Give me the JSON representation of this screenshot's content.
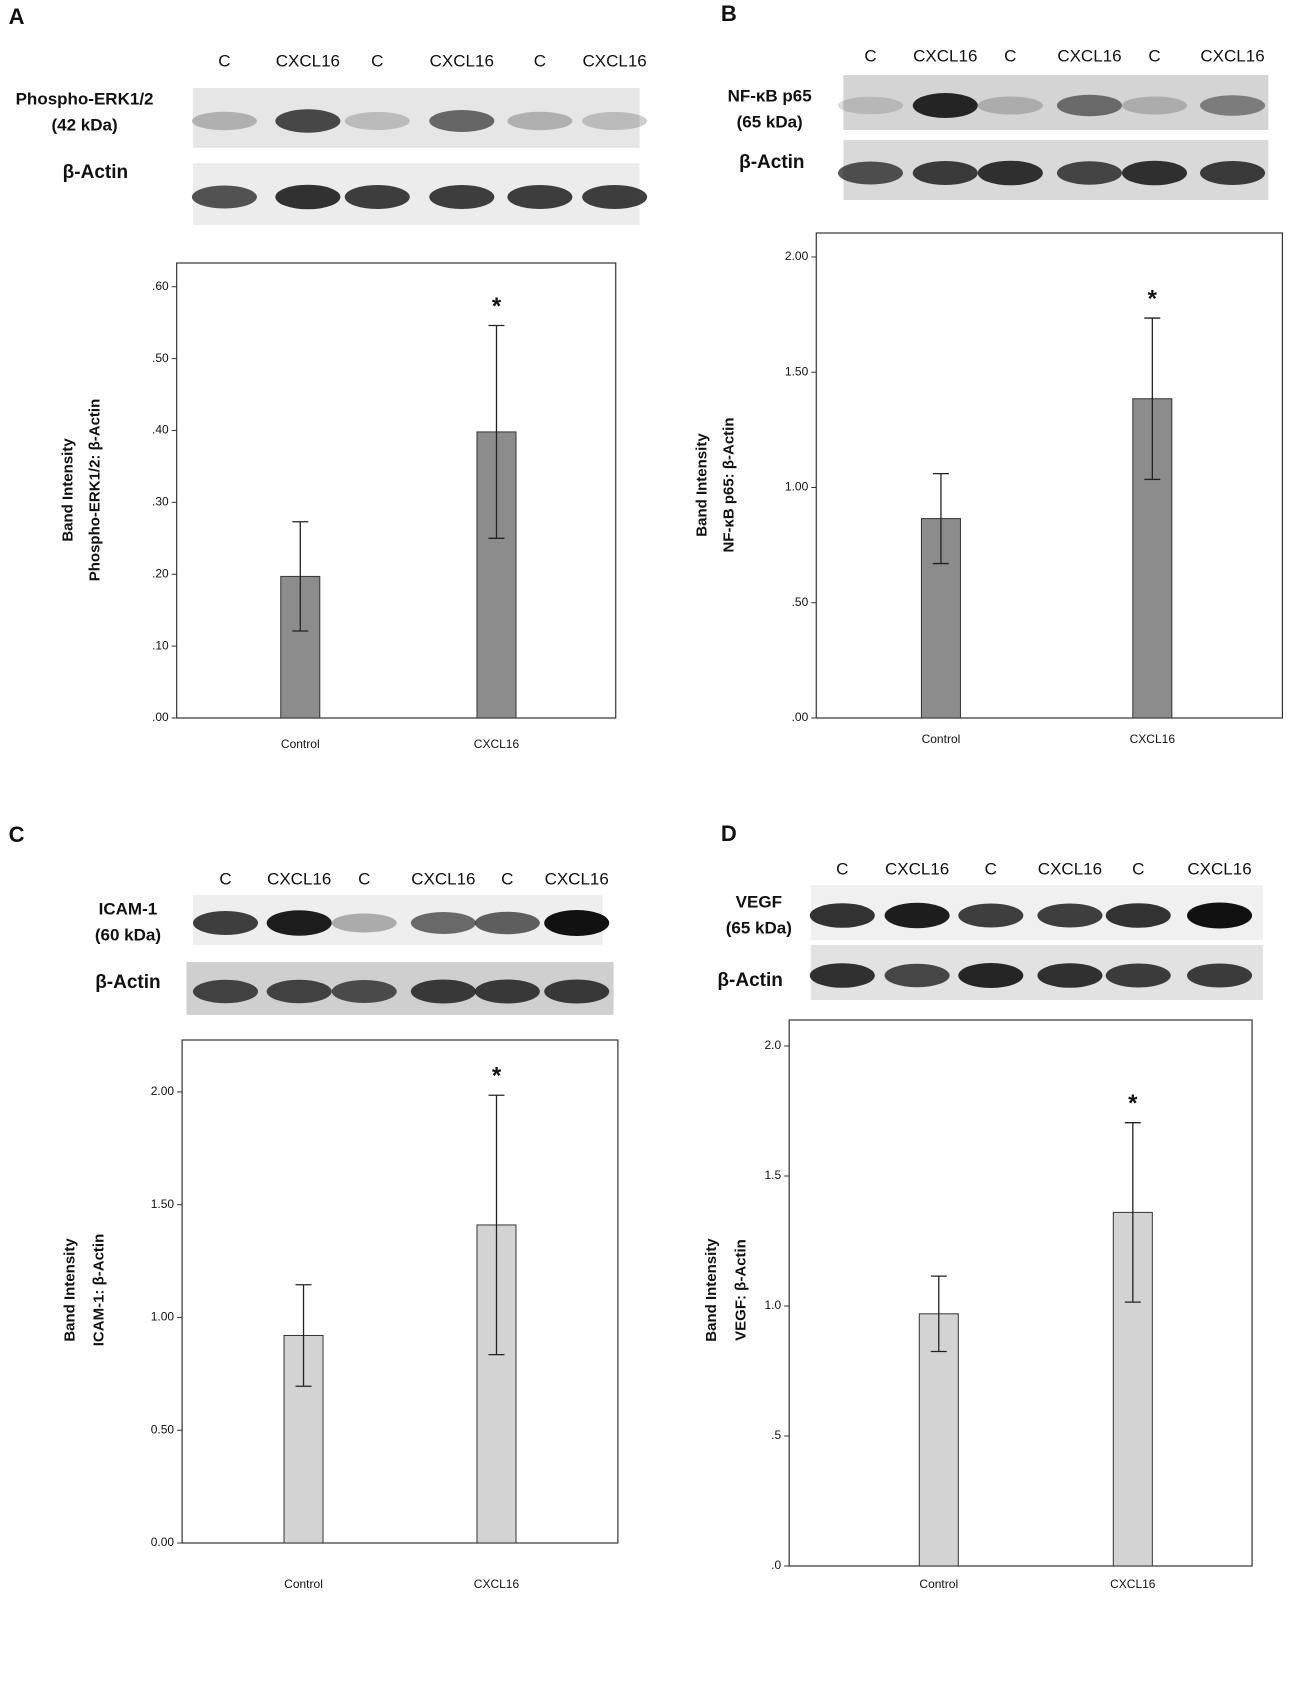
{
  "chart_data": [
    {
      "type": "bar",
      "panel": "A",
      "lanes": [
        "C",
        "CXCL16",
        "C",
        "CXCL16",
        "C",
        "CXCL16"
      ],
      "blot_label": [
        "Phospho-ERK1/2",
        "(42 kDa)"
      ],
      "actin_label": "β-Actin",
      "y_label": [
        "Band Intensity",
        "Phospho-ERK1/2: β-Actin"
      ],
      "categories": [
        "Control",
        "CXCL16"
      ],
      "values": [
        0.197,
        0.398
      ],
      "errors": [
        0.076,
        0.148
      ],
      "color": "#8c8c8c",
      "significance_marker": "*",
      "ylim": [
        0,
        0.633
      ],
      "yticks": [
        {
          "value": 0,
          "label": ".00"
        },
        {
          "value": 0.1,
          "label": ".10"
        },
        {
          "value": 0.2,
          "label": ".20"
        },
        {
          "value": 0.3,
          "label": ".30"
        },
        {
          "value": 0.4,
          "label": ".40"
        },
        {
          "value": 0.5,
          "label": ".50"
        },
        {
          "value": 0.6,
          "label": ".60"
        }
      ]
    },
    {
      "type": "bar",
      "panel": "B",
      "lanes": [
        "C",
        "CXCL16",
        "C",
        "CXCL16",
        "C",
        "CXCL16"
      ],
      "blot_label": [
        "NF-κB p65",
        "(65 kDa)"
      ],
      "actin_label": "β-Actin",
      "y_label": [
        "Band Intensity",
        "NF-κB p65: β-Actin"
      ],
      "categories": [
        "Control",
        "CXCL16"
      ],
      "values": [
        0.865,
        1.385
      ],
      "errors": [
        0.195,
        0.35
      ],
      "color": "#8c8c8c",
      "significance_marker": "*",
      "ylim": [
        0,
        2.104
      ],
      "yticks": [
        {
          "value": 0,
          "label": ".00"
        },
        {
          "value": 0.5,
          "label": ".50"
        },
        {
          "value": 1,
          "label": "1.00"
        },
        {
          "value": 1.5,
          "label": "1.50"
        },
        {
          "value": 2,
          "label": "2.00"
        }
      ]
    },
    {
      "type": "bar",
      "panel": "C",
      "lanes": [
        "C",
        "CXCL16",
        "C",
        "CXCL16",
        "C",
        "CXCL16"
      ],
      "blot_label": [
        "ICAM-1",
        "(60 kDa)"
      ],
      "actin_label": "β-Actin",
      "y_label": [
        "Band Intensity",
        "ICAM-1: β-Actin"
      ],
      "categories": [
        "Control",
        "CXCL16"
      ],
      "values": [
        0.92,
        1.41
      ],
      "errors": [
        0.225,
        0.575
      ],
      "color": "#d3d3d3",
      "significance_marker": "*",
      "ylim": [
        0,
        2.23
      ],
      "yticks": [
        {
          "value": 0,
          "label": "0.00"
        },
        {
          "value": 0.5,
          "label": "0.50"
        },
        {
          "value": 1,
          "label": "1.00"
        },
        {
          "value": 1.5,
          "label": "1.50"
        },
        {
          "value": 2,
          "label": "2.00"
        }
      ]
    },
    {
      "type": "bar",
      "panel": "D",
      "lanes": [
        "C",
        "CXCL16",
        "C",
        "CXCL16",
        "C",
        "CXCL16"
      ],
      "blot_label": [
        "VEGF",
        "(65 kDa)"
      ],
      "actin_label": "β-Actin",
      "y_label": [
        "Band Intensity",
        "VEGF: β-Actin"
      ],
      "categories": [
        "Control",
        "CXCL16"
      ],
      "values": [
        0.97,
        1.36
      ],
      "errors": [
        0.145,
        0.345
      ],
      "color": "#d3d3d3",
      "significance_marker": "*",
      "ylim": [
        0,
        2.1
      ],
      "yticks": [
        {
          "value": 0,
          "label": ".0"
        },
        {
          "value": 0.5,
          "label": ".5"
        },
        {
          "value": 1,
          "label": "1.0"
        },
        {
          "value": 1.5,
          "label": "1.5"
        },
        {
          "value": 2,
          "label": "2.0"
        }
      ]
    }
  ]
}
